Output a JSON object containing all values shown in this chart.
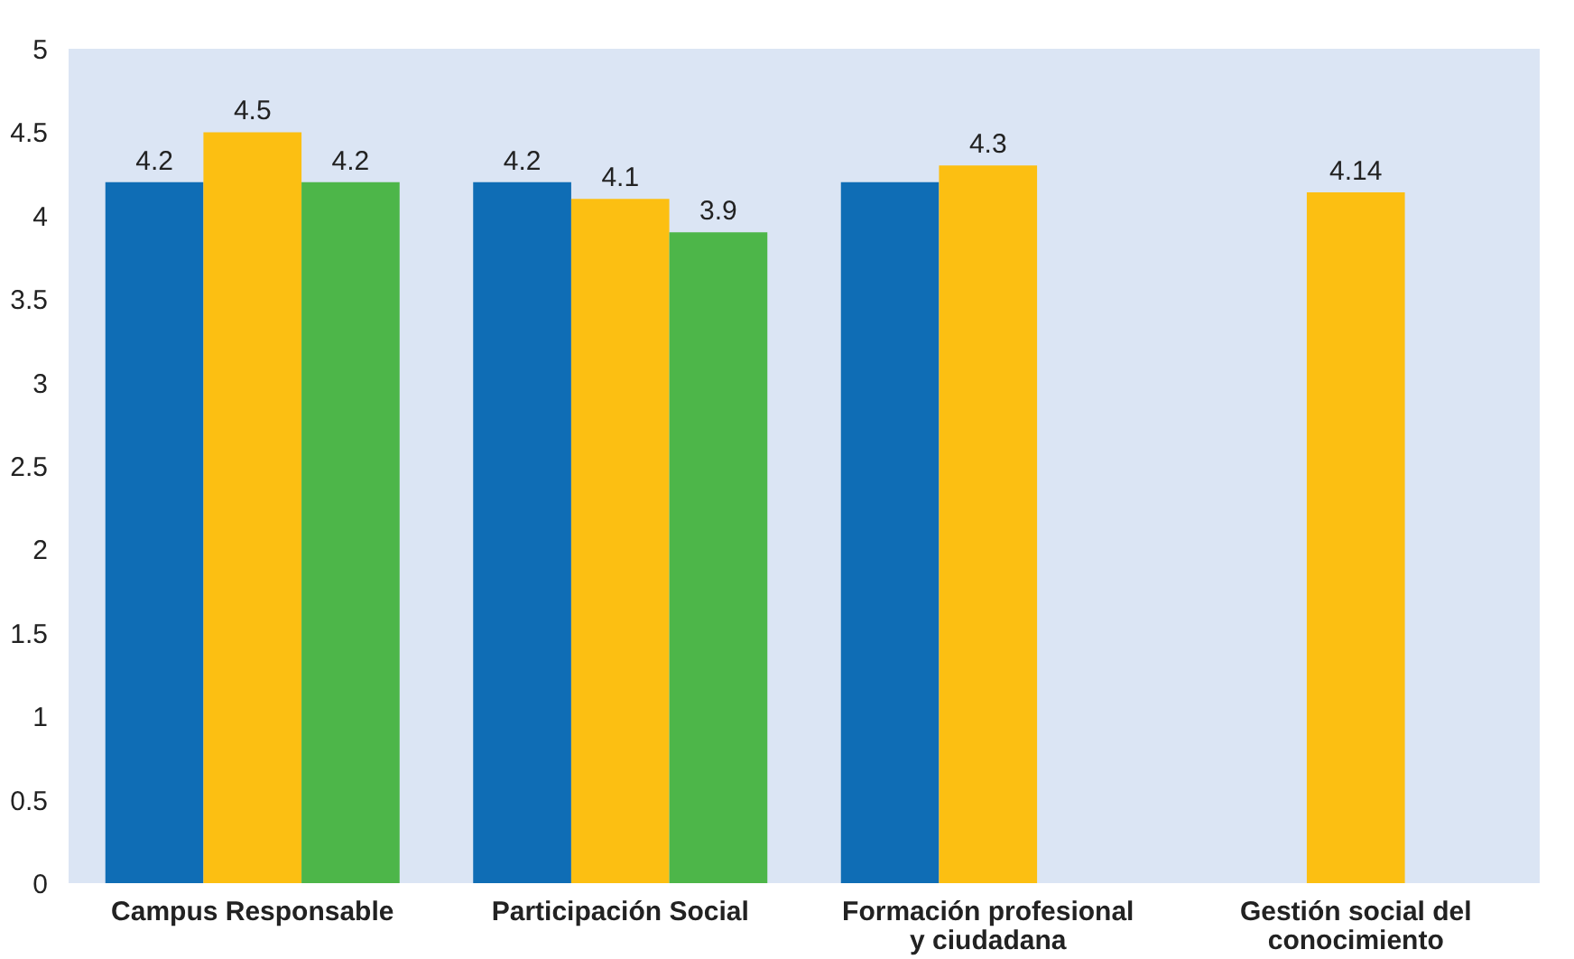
{
  "chart_data": {
    "type": "bar",
    "categories": [
      "Campus Responsable",
      "Participación Social",
      "Formación profesional y ciudadana",
      "Gestión social del conocimiento"
    ],
    "series": [
      {
        "color": "#0f6db5",
        "values": [
          4.2,
          4.2,
          4.2,
          null
        ],
        "value_labels": [
          "4.2",
          "4.2",
          null,
          null
        ]
      },
      {
        "color": "#fcbf12",
        "values": [
          4.5,
          4.1,
          4.3,
          4.14
        ],
        "value_labels": [
          "4.5",
          "4.1",
          "4.3",
          "4.14"
        ]
      },
      {
        "color": "#4db649",
        "values": [
          4.2,
          3.9,
          null,
          null
        ],
        "value_labels": [
          "4.2",
          "3.9",
          null,
          null
        ]
      }
    ],
    "ylim": [
      0,
      5
    ],
    "yticks": [
      0,
      0.5,
      1,
      1.5,
      2,
      2.5,
      3,
      3.5,
      4,
      4.5,
      5
    ],
    "grid": false
  }
}
